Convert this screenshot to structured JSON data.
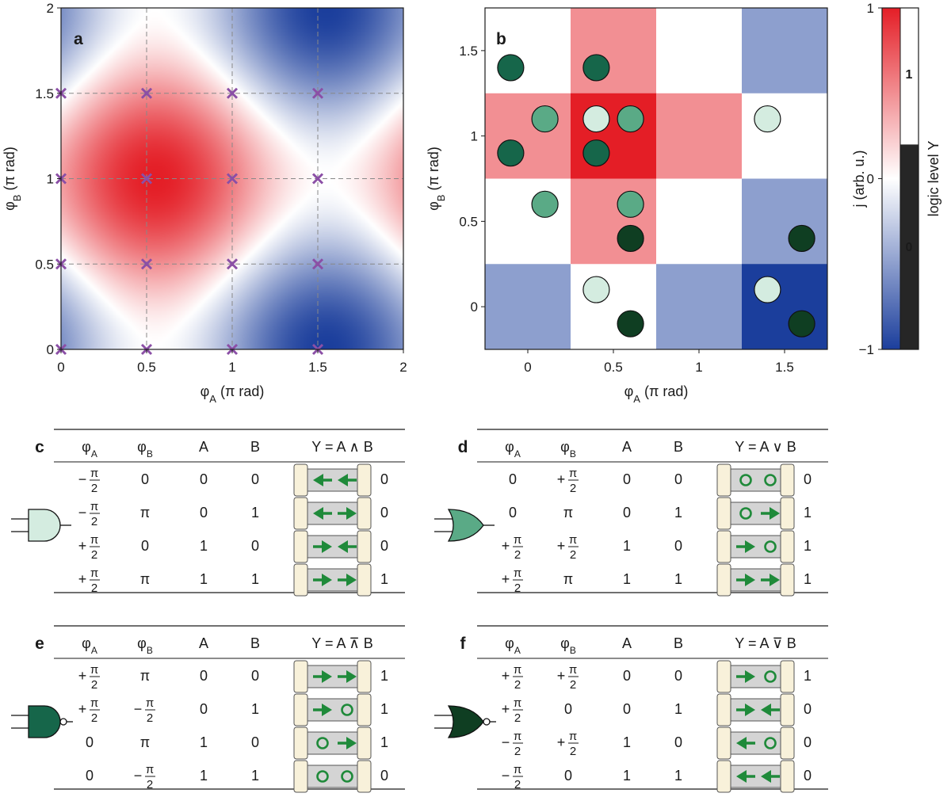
{
  "colors": {
    "red": "#e41e26",
    "blue": "#1b3e9c",
    "white": "#ffffff",
    "marker": "#8b4fa6",
    "grid": "#888888",
    "logic_dark": "#262626",
    "device": "#d4d4d4",
    "contact": "#f8f1da",
    "arrow": "#1f8a3a",
    "gate_and": "#d4ece0",
    "gate_or": "#5aaa86",
    "gate_nand": "#16664a",
    "gate_nor": "#0f3e22"
  },
  "chart_data": [
    {
      "panel": "a",
      "type": "heatmap",
      "description_function": "j = -cos(pi*phiA) - cos(pi*phiB) style map",
      "xlabel": {
        "sym": "φ",
        "sub": "A",
        "unit": " (π rad)"
      },
      "ylabel": {
        "sym": "φ",
        "sub": "B",
        "unit": " (π rad)"
      },
      "xlim": [
        0,
        2
      ],
      "ylim": [
        0,
        2
      ],
      "xticks": [
        0,
        0.5,
        1,
        1.5,
        2
      ],
      "yticks": [
        0,
        0.5,
        1,
        1.5,
        2
      ],
      "xtick_labels": [
        "0",
        "0.5",
        "1",
        "1.5",
        "2"
      ],
      "ytick_labels": [
        "0",
        "0.5",
        "1",
        "1.5",
        "2"
      ],
      "grid_lines": [
        0.5,
        1,
        1.5
      ],
      "markers": [
        [
          0,
          0
        ],
        [
          0.5,
          0
        ],
        [
          1,
          0
        ],
        [
          1.5,
          0
        ],
        [
          0,
          0.5
        ],
        [
          0.5,
          0.5
        ],
        [
          1,
          0.5
        ],
        [
          1.5,
          0.5
        ],
        [
          0,
          1
        ],
        [
          0.5,
          1
        ],
        [
          1,
          1
        ],
        [
          1.5,
          1
        ],
        [
          0,
          1.5
        ],
        [
          0.5,
          1.5
        ],
        [
          1,
          1.5
        ],
        [
          1.5,
          1.5
        ]
      ],
      "marker_symbol": "×"
    },
    {
      "panel": "b",
      "type": "heatmap",
      "xlabel": {
        "sym": "φ",
        "sub": "A",
        "unit": " (π rad)"
      },
      "ylabel": {
        "sym": "φ",
        "sub": "B",
        "unit": " (π rad)"
      },
      "xlim": [
        -0.25,
        1.75
      ],
      "ylim": [
        -0.25,
        1.75
      ],
      "xticks": [
        0,
        0.5,
        1,
        1.5
      ],
      "yticks": [
        0,
        0.5,
        1,
        1.5
      ],
      "xtick_labels": [
        "0",
        "0.5",
        "1",
        "1.5"
      ],
      "ytick_labels": [
        "0",
        "0.5",
        "1",
        "1.5"
      ],
      "cell_centers": [
        0,
        0.5,
        1,
        1.5
      ],
      "cells_rows_phiB_desc": [
        [
          0,
          0.5,
          0,
          -0.5
        ],
        [
          0.5,
          1.0,
          0.5,
          0
        ],
        [
          0,
          0.5,
          0,
          -0.5
        ],
        [
          -0.5,
          0,
          -0.5,
          -1.0
        ]
      ],
      "gate_markers": [
        {
          "gate": "and",
          "phiA": 0.4,
          "phiB": 1.1
        },
        {
          "gate": "and",
          "phiA": 0.4,
          "phiB": 0.1
        },
        {
          "gate": "and",
          "phiA": 1.4,
          "phiB": 1.1
        },
        {
          "gate": "and",
          "phiA": 1.4,
          "phiB": 0.1
        },
        {
          "gate": "or",
          "phiA": 0.1,
          "phiB": 1.1
        },
        {
          "gate": "or",
          "phiA": 0.6,
          "phiB": 1.1
        },
        {
          "gate": "or",
          "phiA": 0.1,
          "phiB": 0.6
        },
        {
          "gate": "or",
          "phiA": 0.6,
          "phiB": 0.6
        },
        {
          "gate": "nand",
          "phiA": -0.1,
          "phiB": 1.4
        },
        {
          "gate": "nand",
          "phiA": 0.4,
          "phiB": 1.4
        },
        {
          "gate": "nand",
          "phiA": -0.1,
          "phiB": 0.9
        },
        {
          "gate": "nand",
          "phiA": 0.4,
          "phiB": 0.9
        },
        {
          "gate": "nor",
          "phiA": 0.6,
          "phiB": 0.4
        },
        {
          "gate": "nor",
          "phiA": 0.6,
          "phiB": -0.1
        },
        {
          "gate": "nor",
          "phiA": 1.6,
          "phiB": 0.4
        },
        {
          "gate": "nor",
          "phiA": 1.6,
          "phiB": -0.1
        }
      ]
    },
    {
      "panel": "colorbar",
      "type": "colorbar",
      "label": "j (arb. u.)",
      "range": [
        -1,
        1
      ],
      "tick_labels": [
        "1",
        "0",
        "−1"
      ],
      "logic_label": "logic level Y",
      "logic_threshold": 0.2,
      "logic_labels": [
        "1",
        "0"
      ]
    }
  ],
  "tables": [
    {
      "letter": "c",
      "gate": "and",
      "headers": {
        "phiA": "φ",
        "phiA_sub": "A",
        "phiB": "φ",
        "phiB_sub": "B",
        "A": "A",
        "B": "B",
        "Y": "Y = A ∧ B"
      },
      "rows": [
        {
          "phiA": {
            "sign": "−",
            "num": "π",
            "den": "2"
          },
          "phiB": {
            "text": "0"
          },
          "A": "0",
          "B": "0",
          "left": "left",
          "right": "left",
          "Y": "0"
        },
        {
          "phiA": {
            "sign": "−",
            "num": "π",
            "den": "2"
          },
          "phiB": {
            "text": "π"
          },
          "A": "0",
          "B": "1",
          "left": "left",
          "right": "right",
          "Y": "0"
        },
        {
          "phiA": {
            "sign": "+",
            "num": "π",
            "den": "2"
          },
          "phiB": {
            "text": "0"
          },
          "A": "1",
          "B": "0",
          "left": "right",
          "right": "left",
          "Y": "0"
        },
        {
          "phiA": {
            "sign": "+",
            "num": "π",
            "den": "2"
          },
          "phiB": {
            "text": "π"
          },
          "A": "1",
          "B": "1",
          "left": "right",
          "right": "right",
          "Y": "1"
        }
      ]
    },
    {
      "letter": "d",
      "gate": "or",
      "headers": {
        "phiA": "φ",
        "phiA_sub": "A",
        "phiB": "φ",
        "phiB_sub": "B",
        "A": "A",
        "B": "B",
        "Y": "Y = A ∨ B"
      },
      "rows": [
        {
          "phiA": {
            "text": "0"
          },
          "phiB": {
            "sign": "+",
            "num": "π",
            "den": "2"
          },
          "A": "0",
          "B": "0",
          "left": "circle",
          "right": "circle",
          "Y": "0"
        },
        {
          "phiA": {
            "text": "0"
          },
          "phiB": {
            "text": "π"
          },
          "A": "0",
          "B": "1",
          "left": "circle",
          "right": "right",
          "Y": "1"
        },
        {
          "phiA": {
            "sign": "+",
            "num": "π",
            "den": "2"
          },
          "phiB": {
            "sign": "+",
            "num": "π",
            "den": "2"
          },
          "A": "1",
          "B": "0",
          "left": "right",
          "right": "circle",
          "Y": "1"
        },
        {
          "phiA": {
            "sign": "+",
            "num": "π",
            "den": "2"
          },
          "phiB": {
            "text": "π"
          },
          "A": "1",
          "B": "1",
          "left": "right",
          "right": "right",
          "Y": "1"
        }
      ]
    },
    {
      "letter": "e",
      "gate": "nand",
      "headers": {
        "phiA": "φ",
        "phiA_sub": "A",
        "phiB": "φ",
        "phiB_sub": "B",
        "A": "A",
        "B": "B",
        "Y": "Y = A ⊼ B"
      },
      "rows": [
        {
          "phiA": {
            "sign": "+",
            "num": "π",
            "den": "2"
          },
          "phiB": {
            "text": "π"
          },
          "A": "0",
          "B": "0",
          "left": "right",
          "right": "right",
          "Y": "1"
        },
        {
          "phiA": {
            "sign": "+",
            "num": "π",
            "den": "2"
          },
          "phiB": {
            "sign": "−",
            "num": "π",
            "den": "2"
          },
          "A": "0",
          "B": "1",
          "left": "right",
          "right": "circle",
          "Y": "1"
        },
        {
          "phiA": {
            "text": "0"
          },
          "phiB": {
            "text": "π"
          },
          "A": "1",
          "B": "0",
          "left": "circle",
          "right": "right",
          "Y": "1"
        },
        {
          "phiA": {
            "text": "0"
          },
          "phiB": {
            "sign": "−",
            "num": "π",
            "den": "2"
          },
          "A": "1",
          "B": "1",
          "left": "circle",
          "right": "circle",
          "Y": "0"
        }
      ]
    },
    {
      "letter": "f",
      "gate": "nor",
      "headers": {
        "phiA": "φ",
        "phiA_sub": "A",
        "phiB": "φ",
        "phiB_sub": "B",
        "A": "A",
        "B": "B",
        "Y": "Y = A ⊽ B"
      },
      "rows": [
        {
          "phiA": {
            "sign": "+",
            "num": "π",
            "den": "2"
          },
          "phiB": {
            "sign": "+",
            "num": "π",
            "den": "2"
          },
          "A": "0",
          "B": "0",
          "left": "right",
          "right": "circle",
          "Y": "1"
        },
        {
          "phiA": {
            "sign": "+",
            "num": "π",
            "den": "2"
          },
          "phiB": {
            "text": "0"
          },
          "A": "0",
          "B": "1",
          "left": "right",
          "right": "left",
          "Y": "0"
        },
        {
          "phiA": {
            "sign": "−",
            "num": "π",
            "den": "2"
          },
          "phiB": {
            "sign": "+",
            "num": "π",
            "den": "2"
          },
          "A": "1",
          "B": "0",
          "left": "left",
          "right": "circle",
          "Y": "0"
        },
        {
          "phiA": {
            "sign": "−",
            "num": "π",
            "den": "2"
          },
          "phiB": {
            "text": "0"
          },
          "A": "1",
          "B": "1",
          "left": "left",
          "right": "left",
          "Y": "0"
        }
      ]
    }
  ]
}
